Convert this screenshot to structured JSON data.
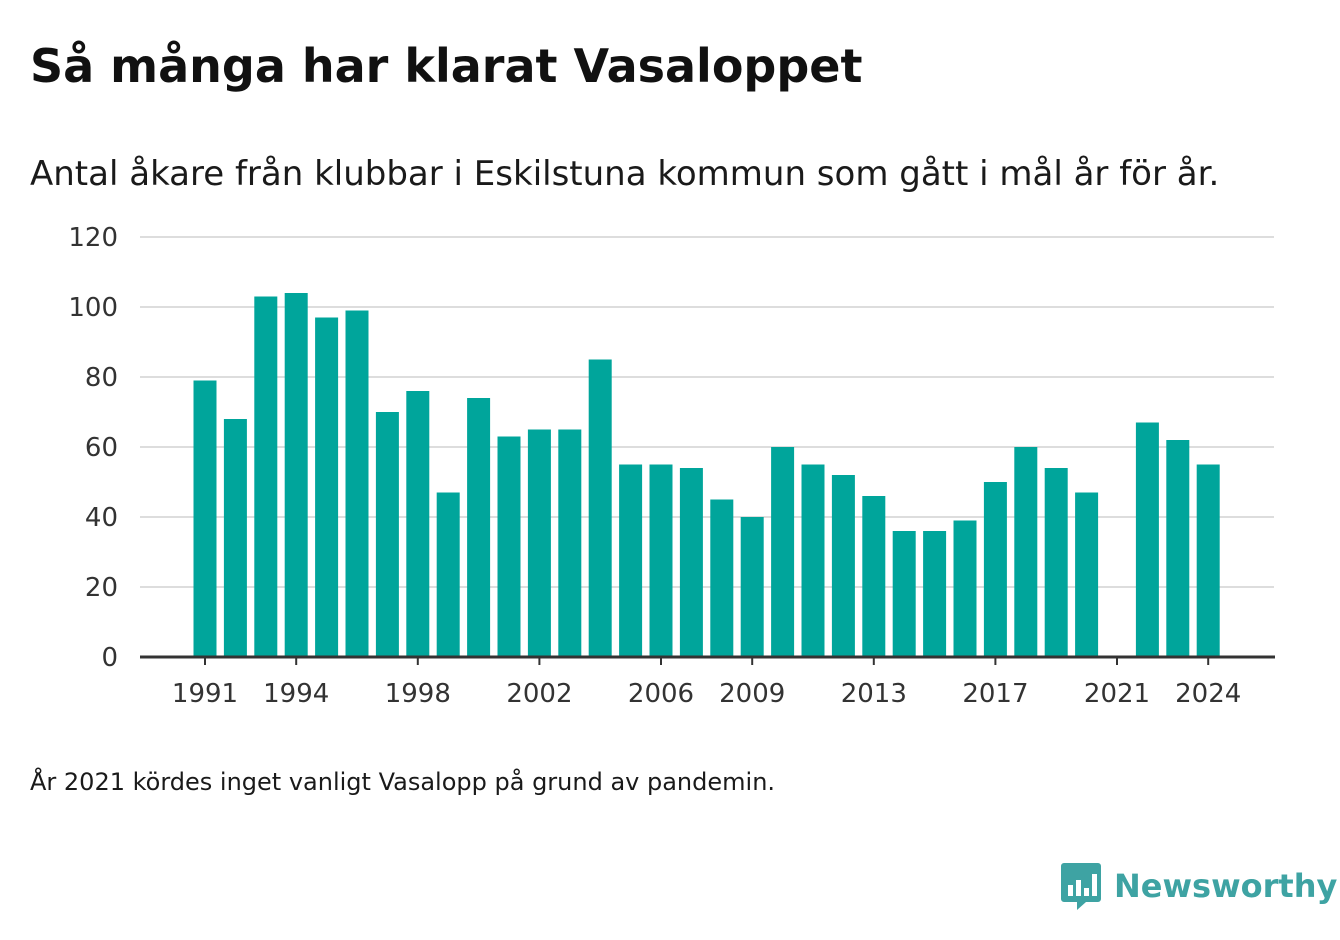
{
  "header": {
    "title": "Så många har klarat Vasaloppet",
    "subtitle": "Antal åkare från klubbar i Eskilstuna kommun som gått i mål år för år."
  },
  "footer": {
    "note": "År 2021 kördes inget vanligt Vasalopp på grund av pandemin.",
    "brand": "Newsworthy",
    "brand_icon": "bar-chart-speech-bubble-icon"
  },
  "colors": {
    "bar": "#00a59b",
    "grid": "#dddddd",
    "axis": "#333333",
    "brand": "#3ea3a3"
  },
  "chart_data": {
    "type": "bar",
    "title": "Så många har klarat Vasaloppet",
    "subtitle": "Antal åkare från klubbar i Eskilstuna kommun som gått i mål år för år.",
    "xlabel": "",
    "ylabel": "",
    "ylim": [
      0,
      120
    ],
    "yticks": [
      0,
      20,
      40,
      60,
      80,
      100,
      120
    ],
    "xticks": [
      "1991",
      "1994",
      "1998",
      "2002",
      "2006",
      "2009",
      "2013",
      "2017",
      "2021",
      "2024"
    ],
    "grid": true,
    "legend": "none",
    "categories": [
      "1991",
      "1992",
      "1993",
      "1994",
      "1995",
      "1996",
      "1997",
      "1998",
      "1999",
      "2000",
      "2001",
      "2002",
      "2003",
      "2004",
      "2005",
      "2006",
      "2007",
      "2008",
      "2009",
      "2010",
      "2011",
      "2012",
      "2013",
      "2014",
      "2015",
      "2016",
      "2017",
      "2018",
      "2019",
      "2020",
      "2021",
      "2022",
      "2023",
      "2024"
    ],
    "values": [
      79,
      68,
      103,
      104,
      97,
      99,
      70,
      76,
      47,
      74,
      63,
      65,
      65,
      85,
      55,
      55,
      54,
      45,
      40,
      60,
      55,
      52,
      46,
      36,
      36,
      39,
      50,
      60,
      54,
      47,
      null,
      67,
      62,
      55
    ]
  }
}
